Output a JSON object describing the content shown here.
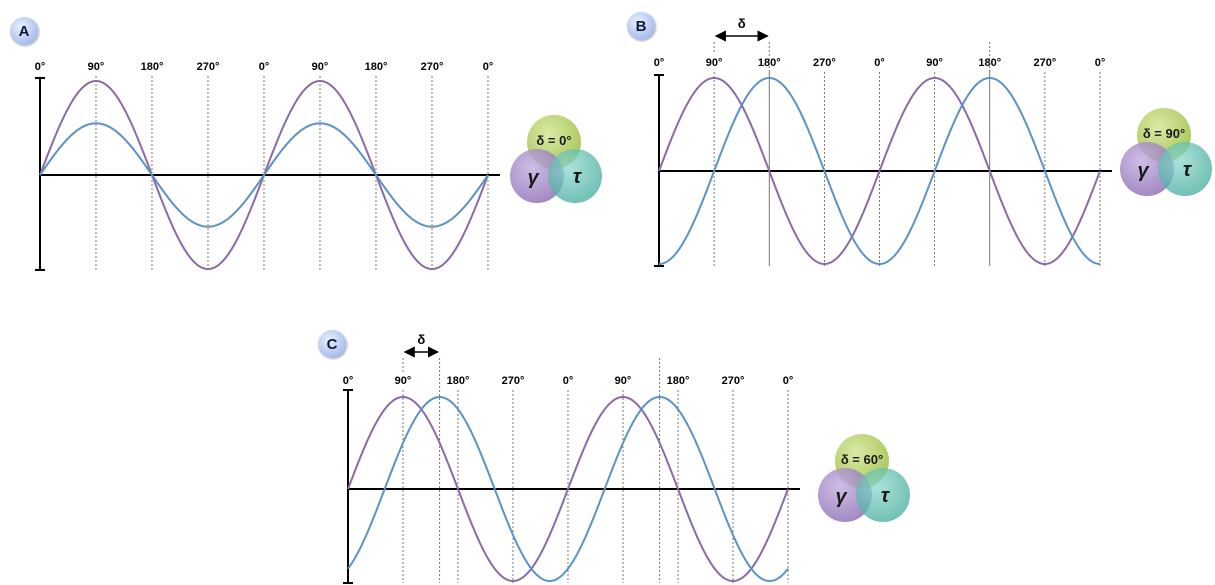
{
  "colors": {
    "gamma_wave": "#8a6aa8",
    "tau_wave": "#5b93c6",
    "badge": "#b7c9f2"
  },
  "panels": [
    {
      "label": "A",
      "phase_labels": [
        "0°",
        "90°",
        "180°",
        "270°",
        "0°",
        "90°",
        "180°",
        "270°",
        "0°"
      ],
      "delta_text": "δ = 0°",
      "gamma_symbol": "γ",
      "tau_symbol": "τ",
      "phase_offset_deg": 0,
      "tau_amplitude_ratio": 0.55,
      "arrow_label": ""
    },
    {
      "label": "B",
      "phase_labels": [
        "0°",
        "90°",
        "180°",
        "270°",
        "0°",
        "90°",
        "180°",
        "270°",
        "0°"
      ],
      "delta_text": "δ = 90°",
      "gamma_symbol": "γ",
      "tau_symbol": "τ",
      "phase_offset_deg": 90,
      "tau_amplitude_ratio": 1.0,
      "arrow_label": "δ"
    },
    {
      "label": "C",
      "phase_labels": [
        "0°",
        "90°",
        "180°",
        "270°",
        "0°",
        "90°",
        "180°",
        "270°",
        "0°"
      ],
      "delta_text": "δ = 60°",
      "gamma_symbol": "γ",
      "tau_symbol": "τ",
      "phase_offset_deg": 60,
      "tau_amplitude_ratio": 1.0,
      "arrow_label": "δ"
    }
  ]
}
